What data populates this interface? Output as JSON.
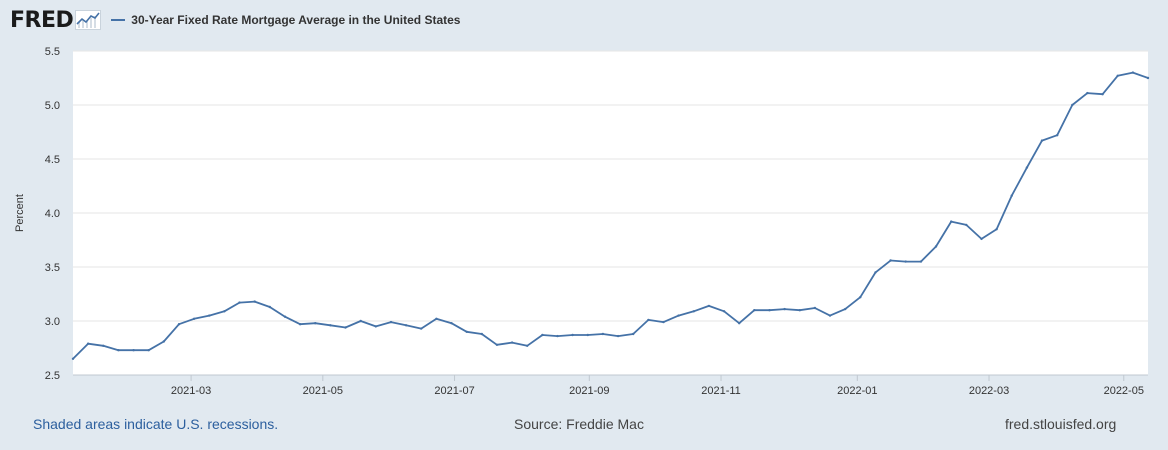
{
  "header": {
    "logo_text": "FRED",
    "logo_icon": "line-chart-icon",
    "legend_label": "30-Year Fixed Rate Mortgage Average in the United States"
  },
  "footer": {
    "recession_note": "Shaded areas indicate U.S. recessions.",
    "source": "Source: Freddie Mac",
    "site": "fred.stlouisfed.org"
  },
  "colors": {
    "series": "#4572a7",
    "plot_bg": "#ffffff",
    "page_bg": "#e1e9f0",
    "grid": "#e6e6e6"
  },
  "chart_data": {
    "type": "line",
    "title": "30-Year Fixed Rate Mortgage Average in the United States",
    "xlabel": "",
    "ylabel": "Percent",
    "ylim": [
      2.5,
      5.5
    ],
    "yticks": [
      "2.5",
      "3.0",
      "3.5",
      "4.0",
      "4.5",
      "5.0",
      "5.5"
    ],
    "xtick_labels": [
      "2021-03",
      "2021-05",
      "2021-07",
      "2021-09",
      "2021-11",
      "2022-01",
      "2022-03",
      "2022-05"
    ],
    "xtick_week_index": [
      7.8,
      16.5,
      25.2,
      34.1,
      42.8,
      51.8,
      60.5,
      69.4
    ],
    "grid": true,
    "legend": "top-left",
    "series": [
      {
        "name": "30-Year Fixed Rate Mortgage Average in the United States",
        "x_start": "2021-01-07",
        "frequency": "weekly",
        "values": [
          2.65,
          2.79,
          2.77,
          2.73,
          2.73,
          2.73,
          2.81,
          2.97,
          3.02,
          3.05,
          3.09,
          3.17,
          3.18,
          3.13,
          3.04,
          2.97,
          2.98,
          2.96,
          2.94,
          3.0,
          2.95,
          2.99,
          2.96,
          2.93,
          3.02,
          2.98,
          2.9,
          2.88,
          2.78,
          2.8,
          2.77,
          2.87,
          2.86,
          2.87,
          2.87,
          2.88,
          2.86,
          2.88,
          3.01,
          2.99,
          3.05,
          3.09,
          3.14,
          3.09,
          2.98,
          3.1,
          3.1,
          3.11,
          3.1,
          3.12,
          3.05,
          3.11,
          3.22,
          3.45,
          3.56,
          3.55,
          3.55,
          3.69,
          3.92,
          3.89,
          3.76,
          3.85,
          4.16,
          4.42,
          4.67,
          4.72,
          5.0,
          5.11,
          5.1,
          5.27,
          5.3,
          5.25
        ]
      }
    ]
  }
}
